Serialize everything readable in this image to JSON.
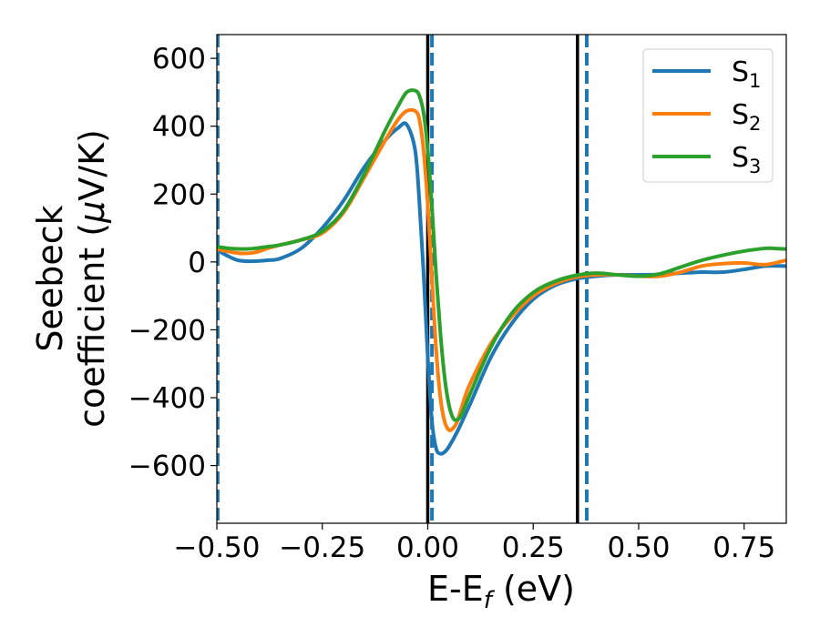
{
  "chart_data": {
    "type": "line",
    "xlabel": {
      "main": "E-E",
      "sub": "f",
      "rest": " (eV)"
    },
    "ylabel": {
      "line1": "Seebeck",
      "line2_prefix": "coefficient  (",
      "line2_mu": "μ",
      "line2_suffix": "V/K)"
    },
    "xlim": [
      -0.5,
      0.85
    ],
    "ylim": [
      -770,
      670
    ],
    "xticks": [
      -0.5,
      -0.25,
      0.0,
      0.25,
      0.5,
      0.75
    ],
    "xtick_labels": [
      "−0.50",
      "−0.25",
      "0.00",
      "0.25",
      "0.50",
      "0.75"
    ],
    "yticks": [
      -600,
      -400,
      -200,
      0,
      200,
      400,
      600
    ],
    "ytick_labels": [
      "−600",
      "−400",
      "−200",
      "0",
      "200",
      "400",
      "600"
    ],
    "grid": false,
    "legend_position": "top-right",
    "series": [
      {
        "name": "S",
        "sub": "1",
        "color": "#1f77b4",
        "x": [
          -0.5,
          -0.47,
          -0.45,
          -0.42,
          -0.38,
          -0.35,
          -0.3,
          -0.25,
          -0.2,
          -0.15,
          -0.1,
          -0.07,
          -0.05,
          -0.03,
          -0.02,
          -0.01,
          0.0,
          0.01,
          0.02,
          0.03,
          0.04,
          0.05,
          0.07,
          0.1,
          0.15,
          0.2,
          0.25,
          0.3,
          0.35,
          0.4,
          0.45,
          0.5,
          0.55,
          0.6,
          0.65,
          0.7,
          0.75,
          0.8,
          0.85
        ],
        "y": [
          35,
          15,
          5,
          2,
          5,
          10,
          40,
          100,
          180,
          280,
          360,
          395,
          405,
          330,
          180,
          -30,
          -280,
          -470,
          -550,
          -565,
          -560,
          -545,
          -500,
          -420,
          -280,
          -180,
          -110,
          -70,
          -50,
          -42,
          -38,
          -38,
          -37,
          -33,
          -30,
          -30,
          -22,
          -12,
          -12
        ]
      },
      {
        "name": "S",
        "sub": "2",
        "color": "#ff7f0e",
        "x": [
          -0.5,
          -0.47,
          -0.44,
          -0.41,
          -0.38,
          -0.35,
          -0.3,
          -0.25,
          -0.2,
          -0.15,
          -0.1,
          -0.07,
          -0.05,
          -0.03,
          -0.02,
          -0.01,
          0.0,
          0.01,
          0.02,
          0.03,
          0.04,
          0.05,
          0.06,
          0.07,
          0.08,
          0.1,
          0.15,
          0.2,
          0.25,
          0.3,
          0.35,
          0.4,
          0.45,
          0.5,
          0.55,
          0.6,
          0.65,
          0.7,
          0.75,
          0.8,
          0.85
        ],
        "y": [
          38,
          30,
          25,
          28,
          40,
          50,
          65,
          85,
          145,
          250,
          360,
          420,
          445,
          445,
          420,
          330,
          170,
          -50,
          -260,
          -400,
          -470,
          -495,
          -490,
          -470,
          -430,
          -360,
          -240,
          -160,
          -100,
          -65,
          -45,
          -38,
          -38,
          -42,
          -42,
          -30,
          -12,
          -5,
          -3,
          -8,
          5
        ]
      },
      {
        "name": "S",
        "sub": "3",
        "color": "#2ca02c",
        "x": [
          -0.5,
          -0.47,
          -0.44,
          -0.41,
          -0.38,
          -0.35,
          -0.3,
          -0.25,
          -0.2,
          -0.15,
          -0.1,
          -0.07,
          -0.05,
          -0.03,
          -0.02,
          -0.01,
          0.0,
          0.01,
          0.02,
          0.03,
          0.04,
          0.05,
          0.06,
          0.07,
          0.08,
          0.1,
          0.15,
          0.2,
          0.25,
          0.3,
          0.35,
          0.4,
          0.45,
          0.5,
          0.55,
          0.6,
          0.65,
          0.7,
          0.75,
          0.8,
          0.82,
          0.85
        ],
        "y": [
          45,
          40,
          38,
          40,
          45,
          50,
          65,
          90,
          150,
          260,
          390,
          460,
          500,
          505,
          490,
          440,
          330,
          160,
          -40,
          -210,
          -340,
          -420,
          -460,
          -465,
          -450,
          -390,
          -250,
          -150,
          -90,
          -58,
          -40,
          -33,
          -38,
          -42,
          -35,
          -15,
          5,
          20,
          32,
          40,
          40,
          38
        ]
      }
    ],
    "vlines": [
      {
        "x": -0.498,
        "color": "#1f77b4",
        "style": "dashed"
      },
      {
        "x": 0.0,
        "color": "#000000",
        "style": "solid"
      },
      {
        "x": 0.01,
        "color": "#1f77b4",
        "style": "dashed"
      },
      {
        "x": 0.355,
        "color": "#000000",
        "style": "solid"
      },
      {
        "x": 0.377,
        "color": "#1f77b4",
        "style": "dashed"
      }
    ]
  }
}
